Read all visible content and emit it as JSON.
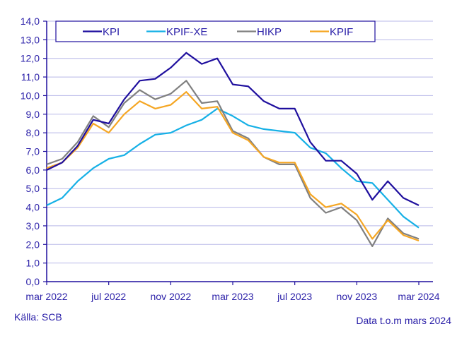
{
  "chart_data": {
    "type": "line",
    "title": "",
    "xlabel": "",
    "ylabel": "",
    "ylim": [
      0,
      14
    ],
    "y_ticks": [
      0,
      1,
      2,
      3,
      4,
      5,
      6,
      7,
      8,
      9,
      10,
      11,
      12,
      13,
      14
    ],
    "y_tick_labels": [
      "0,0",
      "1,0",
      "2,0",
      "3,0",
      "4,0",
      "5,0",
      "6,0",
      "7,0",
      "8,0",
      "9,0",
      "10,0",
      "11,0",
      "12,0",
      "13,0",
      "14,0"
    ],
    "x": [
      "mar 2022",
      "apr 2022",
      "maj 2022",
      "jun 2022",
      "jul 2022",
      "aug 2022",
      "sep 2022",
      "okt 2022",
      "nov 2022",
      "dec 2022",
      "jan 2023",
      "feb 2023",
      "mar 2023",
      "apr 2023",
      "maj 2023",
      "jun 2023",
      "jul 2023",
      "aug 2023",
      "sep 2023",
      "okt 2023",
      "nov 2023",
      "dec 2023",
      "jan 2024",
      "feb 2024",
      "mar 2024"
    ],
    "x_tick_indices": [
      0,
      4,
      8,
      12,
      16,
      20,
      24
    ],
    "x_tick_labels": [
      "mar 2022",
      "jul 2022",
      "nov 2022",
      "mar 2023",
      "jul 2023",
      "nov 2023",
      "mar 2024"
    ],
    "grid": true,
    "legend_position": "top",
    "series": [
      {
        "name": "KPI",
        "color": "#1f0f9e",
        "values": [
          6.0,
          6.4,
          7.3,
          8.7,
          8.5,
          9.8,
          10.8,
          10.9,
          11.5,
          12.3,
          11.7,
          12.0,
          10.6,
          10.5,
          9.7,
          9.3,
          9.3,
          7.5,
          6.5,
          6.5,
          5.8,
          4.4,
          5.4,
          4.5,
          4.1
        ]
      },
      {
        "name": "KPIF-XE",
        "color": "#16b0e6",
        "values": [
          4.1,
          4.5,
          5.4,
          6.1,
          6.6,
          6.8,
          7.4,
          7.9,
          8.0,
          8.4,
          8.7,
          9.3,
          8.9,
          8.4,
          8.2,
          8.1,
          8.0,
          7.2,
          6.9,
          6.1,
          5.4,
          5.3,
          4.4,
          3.5,
          2.9
        ]
      },
      {
        "name": "HIKP",
        "color": "#808080",
        "values": [
          6.3,
          6.6,
          7.5,
          8.9,
          8.3,
          9.6,
          10.3,
          9.8,
          10.1,
          10.8,
          9.6,
          9.7,
          8.1,
          7.7,
          6.7,
          6.3,
          6.3,
          4.5,
          3.7,
          4.0,
          3.3,
          1.9,
          3.4,
          2.6,
          2.3
        ]
      },
      {
        "name": "KPIF",
        "color": "#f5a623",
        "values": [
          6.1,
          6.4,
          7.2,
          8.5,
          8.0,
          9.0,
          9.7,
          9.3,
          9.5,
          10.2,
          9.3,
          9.4,
          8.0,
          7.6,
          6.7,
          6.4,
          6.4,
          4.7,
          4.0,
          4.2,
          3.6,
          2.3,
          3.3,
          2.5,
          2.2
        ]
      }
    ]
  },
  "footer": {
    "source": "Källa: SCB",
    "data_note": "Data t.o.m mars 2024"
  },
  "colors": {
    "text": "#2a1fa8",
    "axis": "#1f0f9e",
    "grid": "#b8b8e8"
  }
}
